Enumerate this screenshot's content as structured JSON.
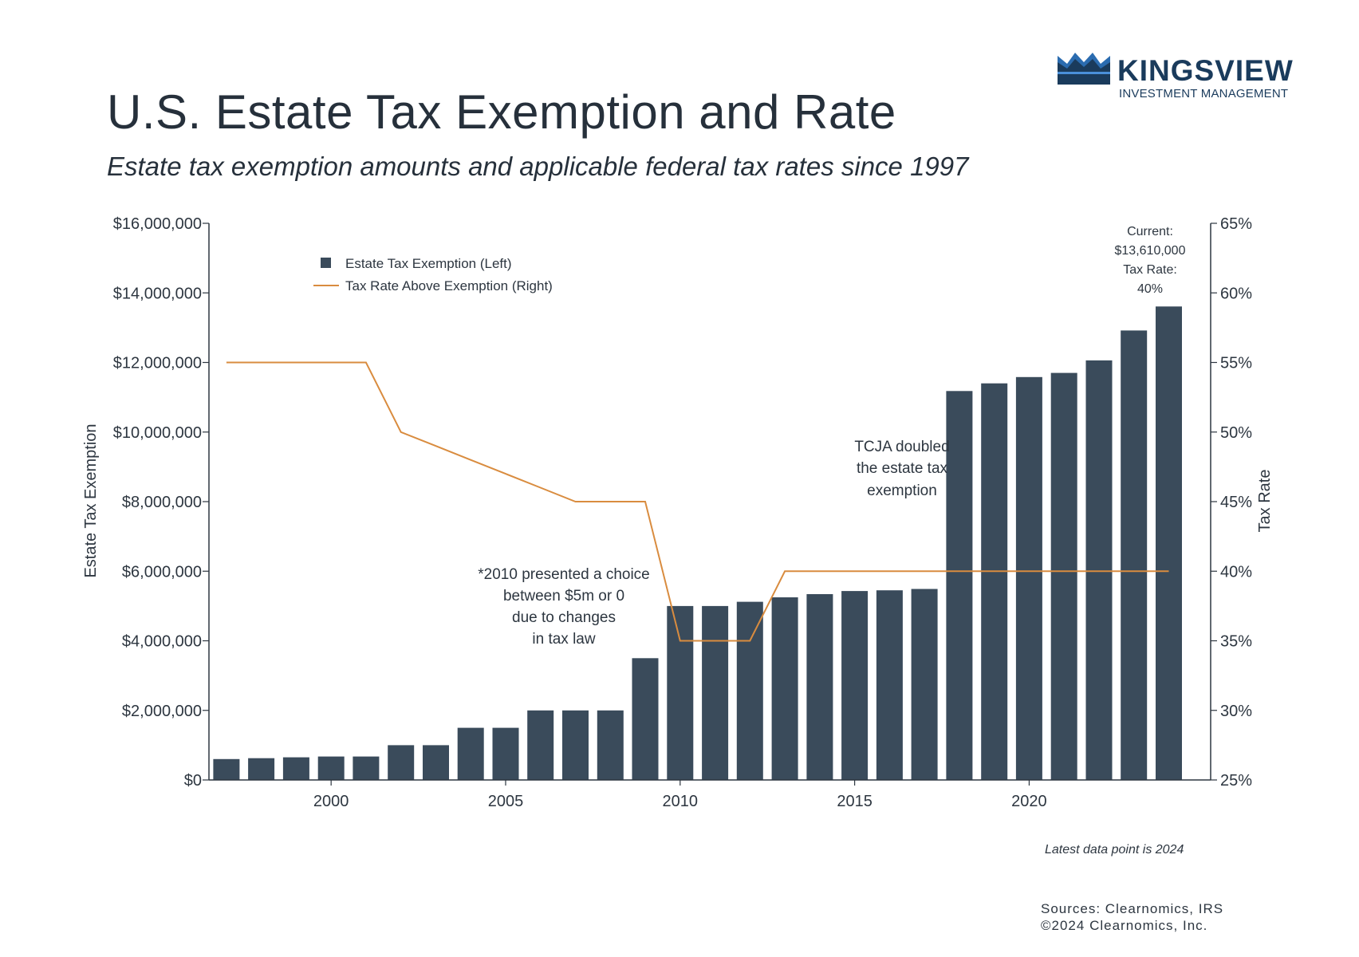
{
  "header": {
    "title": "U.S. Estate Tax Exemption and Rate",
    "subtitle": "Estate tax exemption amounts and applicable federal tax rates since 1997"
  },
  "logo": {
    "name": "KINGSVIEW",
    "tagline": "INVESTMENT MANAGEMENT",
    "icon": "crown-icon"
  },
  "footer": {
    "latest_note": "Latest data point is 2024",
    "sources": "Sources: Clearnomics, IRS",
    "copyright": "©2024 Clearnomics, Inc."
  },
  "colors": {
    "bar": "#3a4b5b",
    "line": "#d98c3f",
    "text": "#2d3640",
    "logo": "#1a3b5c"
  },
  "chart_data": {
    "type": "bar",
    "title": "",
    "xlabel": "",
    "ylabel": "Estate Tax Exemption",
    "y2label": "Tax Rate",
    "ylim": [
      0,
      16000000
    ],
    "y2lim": [
      25,
      65
    ],
    "grid": false,
    "legend_position": "top-left",
    "x_ticks": [
      "2000",
      "2005",
      "2010",
      "2015",
      "2020"
    ],
    "y_ticks": [
      "$0",
      "$2,000,000",
      "$4,000,000",
      "$6,000,000",
      "$8,000,000",
      "$10,000,000",
      "$12,000,000",
      "$14,000,000",
      "$16,000,000"
    ],
    "y2_ticks": [
      "25%",
      "30%",
      "35%",
      "40%",
      "45%",
      "50%",
      "55%",
      "60%",
      "65%"
    ],
    "x": [
      1997,
      1998,
      1999,
      2000,
      2001,
      2002,
      2003,
      2004,
      2005,
      2006,
      2007,
      2008,
      2009,
      2010,
      2011,
      2012,
      2013,
      2014,
      2015,
      2016,
      2017,
      2018,
      2019,
      2020,
      2021,
      2022,
      2023,
      2024
    ],
    "series": [
      {
        "name": "Estate Tax Exemption (Left)",
        "type": "bar",
        "axis": "left",
        "values": [
          600000,
          625000,
          650000,
          675000,
          675000,
          1000000,
          1000000,
          1500000,
          1500000,
          2000000,
          2000000,
          2000000,
          3500000,
          5000000,
          5000000,
          5120000,
          5250000,
          5340000,
          5430000,
          5450000,
          5490000,
          11180000,
          11400000,
          11580000,
          11700000,
          12060000,
          12920000,
          13610000
        ]
      },
      {
        "name": "Tax Rate Above Exemption (Right)",
        "type": "line",
        "axis": "right",
        "values": [
          55,
          55,
          55,
          55,
          55,
          50,
          49,
          48,
          47,
          46,
          45,
          45,
          45,
          35,
          35,
          35,
          40,
          40,
          40,
          40,
          40,
          40,
          40,
          40,
          40,
          40,
          40,
          40
        ]
      }
    ],
    "annotations": [
      {
        "lines": [
          "*2010 presented a choice",
          "between $5m or 0",
          "due to changes",
          "in tax law"
        ]
      },
      {
        "lines": [
          "TCJA doubled",
          "the estate tax",
          "exemption"
        ]
      },
      {
        "lines": [
          "Current:",
          "$13,610,000",
          "Tax Rate:",
          "40%"
        ]
      }
    ]
  }
}
